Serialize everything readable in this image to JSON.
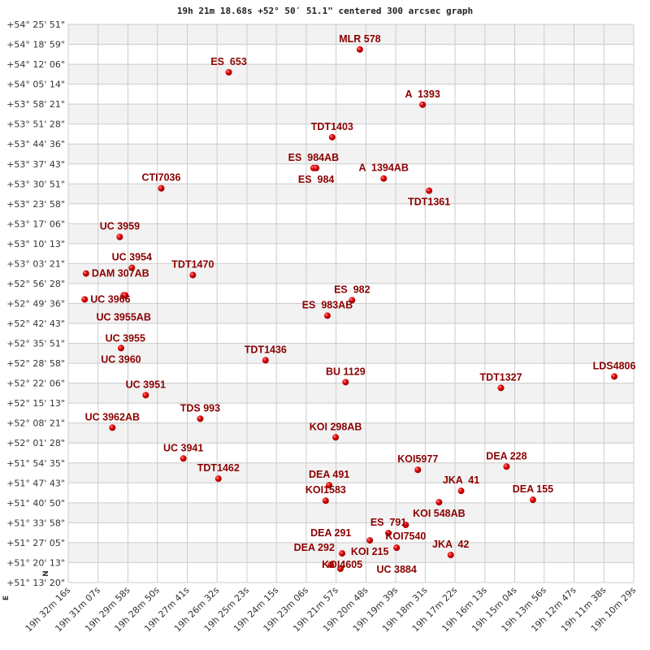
{
  "chart_data": {
    "type": "scatter",
    "title": "19h 21m 18.68s +52° 50′ 51.1\" centered 300 arcsec graph",
    "compass": {
      "north": "N",
      "east": "E"
    },
    "grid": true,
    "banded_rows": true,
    "colors": {
      "point": "#dd0000",
      "label": "#8b0000",
      "band": "#f2f2f2",
      "grid": "#cccccc"
    },
    "x_axis": {
      "unit": "right ascension",
      "reversed": true,
      "ticks": [
        "19h 32m 16s",
        "19h 31m 07s",
        "19h 29m 58s",
        "19h 28m 50s",
        "19h 27m 41s",
        "19h 26m 32s",
        "19h 25m 23s",
        "19h 24m 15s",
        "19h 23m 06s",
        "19h 21m 57s",
        "19h 20m 48s",
        "19h 19m 39s",
        "19h 18m 31s",
        "19h 17m 22s",
        "19h 16m 13s",
        "19h 15m 04s",
        "19h 13m 56s",
        "19h 12m 47s",
        "19h 11m 38s",
        "19h 10m 29s"
      ]
    },
    "y_axis": {
      "unit": "declination",
      "ticks": [
        "+54° 25' 51\"",
        "+54° 18' 59\"",
        "+54° 12' 06\"",
        "+54° 05' 14\"",
        "+53° 58' 21\"",
        "+53° 51' 28\"",
        "+53° 44' 36\"",
        "+53° 37' 43\"",
        "+53° 30' 51\"",
        "+53° 23' 58\"",
        "+53° 17' 06\"",
        "+53° 10' 13\"",
        "+53° 03' 21\"",
        "+52° 56' 28\"",
        "+52° 49' 36\"",
        "+52° 42' 43\"",
        "+52° 35' 51\"",
        "+52° 28' 58\"",
        "+52° 22' 06\"",
        "+52° 15' 13\"",
        "+52° 08' 21\"",
        "+52° 01' 28\"",
        "+51° 54' 35\"",
        "+51° 47' 43\"",
        "+51° 40' 50\"",
        "+51° 33' 58\"",
        "+51° 27' 05\"",
        "+51° 20' 13\"",
        "+51° 13' 20\""
      ]
    },
    "points": [
      {
        "name": "MLR 578",
        "ra": "19h 21m 02s",
        "dec": "+54° 17' 11\""
      },
      {
        "name": "ES  653",
        "ra": "19h 26m 05s",
        "dec": "+54° 09' 20\""
      },
      {
        "name": "A  1393",
        "ra": "19h 18m 37s",
        "dec": "+53° 58' 09\""
      },
      {
        "name": "TDT1403",
        "ra": "19h 22m 06s",
        "dec": "+53° 46' 57\""
      },
      {
        "name": "ES  984AB",
        "ra": "19h 22m 49s",
        "dec": "+53° 36' 19\""
      },
      {
        "name": "ES  984",
        "ra": "19h 22m 43s",
        "dec": "+53° 36' 19\""
      },
      {
        "name": "A  1394AB",
        "ra": "19h 20m 07s",
        "dec": "+53° 32' 41\""
      },
      {
        "name": "TDT1361",
        "ra": "19h 18m 22s",
        "dec": "+53° 28' 29\""
      },
      {
        "name": "CTI7036",
        "ra": "19h 28m 41s",
        "dec": "+53° 29' 19\""
      },
      {
        "name": "UC 3959",
        "ra": "19h 30m 17s",
        "dec": "+53° 12' 32\""
      },
      {
        "name": "DAM 307AB",
        "ra": "19h 31m 35s",
        "dec": "+52° 59' 56\""
      },
      {
        "name": "UC 3954",
        "ra": "19h 29m 49s",
        "dec": "+53° 01' 54\""
      },
      {
        "name": "TDT1470",
        "ra": "19h 27m 28s",
        "dec": "+52° 59' 23\""
      },
      {
        "name": "UC 3966",
        "ra": "19h 31m 38s",
        "dec": "+52° 50' 59\""
      },
      {
        "name": "UC 3955AB",
        "ra": "19h 30m 08s",
        "dec": "+52° 52' 23\""
      },
      {
        "name": "UC 3955",
        "ra": "19h 30m 04s",
        "dec": "+52° 52' 23\""
      },
      {
        "name": "ES  982",
        "ra": "19h 21m 20s",
        "dec": "+52° 50' 42\""
      },
      {
        "name": "ES  983AB",
        "ra": "19h 22m 17s",
        "dec": "+52° 45' 23\""
      },
      {
        "name": "UC 3960",
        "ra": "19h 30m 14s",
        "dec": "+52° 34' 12\""
      },
      {
        "name": "TDT1436",
        "ra": "19h 24m 40s",
        "dec": "+52° 30' 00\""
      },
      {
        "name": "BU 1129",
        "ra": "19h 21m 35s",
        "dec": "+52° 22' 27\""
      },
      {
        "name": "TDT1327",
        "ra": "19h 15m 36s",
        "dec": "+52° 20' 29\""
      },
      {
        "name": "LDS4806",
        "ra": "19h 11m 14s",
        "dec": "+52° 24' 24\""
      },
      {
        "name": "UC 3951",
        "ra": "19h 29m 17s",
        "dec": "+52° 17' 58\""
      },
      {
        "name": "TDS 993",
        "ra": "19h 27m 11s",
        "dec": "+52° 09' 51\""
      },
      {
        "name": "UC 3962AB",
        "ra": "19h 30m 34s",
        "dec": "+52° 06' 46\""
      },
      {
        "name": "KOI 298AB",
        "ra": "19h 21m 58s",
        "dec": "+52° 03' 25\""
      },
      {
        "name": "UC 3941",
        "ra": "19h 27m 50s",
        "dec": "+51° 56' 08\""
      },
      {
        "name": "TDT1462",
        "ra": "19h 26m 29s",
        "dec": "+51° 49' 09\""
      },
      {
        "name": "KOI5977",
        "ra": "19h 18m 48s",
        "dec": "+51° 52' 13\""
      },
      {
        "name": "DEA 228",
        "ra": "19h 15m 23s",
        "dec": "+51° 53' 20\""
      },
      {
        "name": "DEA 491",
        "ra": "19h 22m 13s",
        "dec": "+51° 46' 54\""
      },
      {
        "name": "KOI1583",
        "ra": "19h 22m 21s",
        "dec": "+51° 41' 35\""
      },
      {
        "name": "JKA  41",
        "ra": "19h 17m 08s",
        "dec": "+51° 44' 57\""
      },
      {
        "name": "KOI 548AB",
        "ra": "19h 17m 59s",
        "dec": "+51° 41' 02\""
      },
      {
        "name": "DEA 155",
        "ra": "19h 14m 22s",
        "dec": "+51° 41' 52\""
      },
      {
        "name": "KOI7540",
        "ra": "19h 19m 16s",
        "dec": "+51° 33' 12\""
      },
      {
        "name": "ES  791",
        "ra": "19h 19m 56s",
        "dec": "+51° 30' 24\""
      },
      {
        "name": "KOI 215",
        "ra": "19h 20m 39s",
        "dec": "+51° 27' 53\""
      },
      {
        "name": "UC 3884",
        "ra": "19h 19m 37s",
        "dec": "+51° 25' 21\""
      },
      {
        "name": "KOI4605",
        "ra": "19h 21m 43s",
        "dec": "+51° 23' 24\""
      },
      {
        "name": "JKA  42",
        "ra": "19h 17m 32s",
        "dec": "+51° 22' 50\""
      },
      {
        "name": "DEA 291",
        "ra": "19h 22m 09s",
        "dec": "+51° 19' 29\""
      },
      {
        "name": "DEA 292",
        "ra": "19h 21m 47s",
        "dec": "+51° 18' 05\""
      }
    ]
  }
}
